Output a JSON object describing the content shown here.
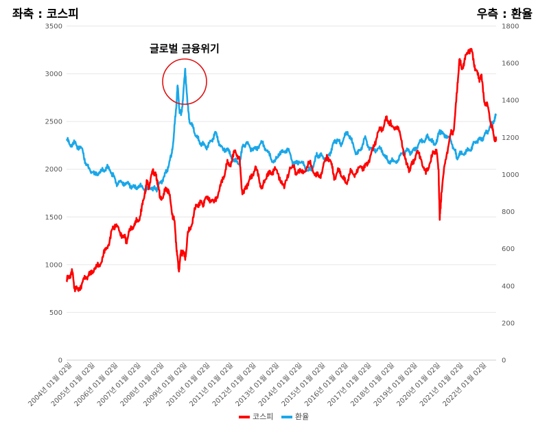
{
  "chart_data": {
    "type": "line",
    "left_axis_title": "좌축 : 코스피",
    "right_axis_title": "우측 : 환율",
    "annotation": "글로벌 금융위기",
    "y_left": {
      "min": 0,
      "max": 3500,
      "ticks": [
        0,
        500,
        1000,
        1500,
        2000,
        2500,
        3000,
        3500
      ]
    },
    "y_right": {
      "min": 0,
      "max": 1800,
      "ticks": [
        0,
        200,
        400,
        600,
        800,
        1000,
        1200,
        1400,
        1600,
        1800
      ]
    },
    "x_range": [
      2004.0,
      2022.65
    ],
    "x_ticks": [
      {
        "value": 2004.0,
        "label": "2004년 01월 02일"
      },
      {
        "value": 2005.0,
        "label": "2005년 01월 02일"
      },
      {
        "value": 2006.0,
        "label": "2006년 01월 02일"
      },
      {
        "value": 2007.0,
        "label": "2007년 01월 02일"
      },
      {
        "value": 2008.0,
        "label": "2008년 01월 02일"
      },
      {
        "value": 2009.0,
        "label": "2009년 01월 02일"
      },
      {
        "value": 2010.0,
        "label": "2010년 01월 02일"
      },
      {
        "value": 2011.0,
        "label": "2011년 01월 02일"
      },
      {
        "value": 2012.0,
        "label": "2012년 01월 02일"
      },
      {
        "value": 2013.0,
        "label": "2013년 01월 02일"
      },
      {
        "value": 2014.0,
        "label": "2014년 01월 02일"
      },
      {
        "value": 2015.0,
        "label": "2015년 01월 02일"
      },
      {
        "value": 2016.0,
        "label": "2016년 01월 02일"
      },
      {
        "value": 2017.0,
        "label": "2017년 01월 02일"
      },
      {
        "value": 2018.0,
        "label": "2018년 01월 02일"
      },
      {
        "value": 2019.0,
        "label": "2019년 01월 02일"
      },
      {
        "value": 2020.0,
        "label": "2020년 01월 02일"
      },
      {
        "value": 2021.0,
        "label": "2021년 01월 02일"
      },
      {
        "value": 2022.0,
        "label": "2022년 01월 02일"
      }
    ],
    "grid": true,
    "legend_position": "bottom",
    "series": [
      {
        "name": "코스피",
        "axis": "left",
        "color": "#ff0000",
        "points": [
          [
            2004.0,
            820
          ],
          [
            2004.1,
            880
          ],
          [
            2004.25,
            920
          ],
          [
            2004.35,
            760
          ],
          [
            2004.5,
            730
          ],
          [
            2004.7,
            820
          ],
          [
            2004.85,
            870
          ],
          [
            2005.0,
            890
          ],
          [
            2005.2,
            960
          ],
          [
            2005.4,
            980
          ],
          [
            2005.6,
            1100
          ],
          [
            2005.8,
            1200
          ],
          [
            2006.0,
            1380
          ],
          [
            2006.1,
            1420
          ],
          [
            2006.3,
            1350
          ],
          [
            2006.5,
            1290
          ],
          [
            2006.6,
            1250
          ],
          [
            2006.75,
            1360
          ],
          [
            2006.95,
            1430
          ],
          [
            2007.1,
            1450
          ],
          [
            2007.25,
            1560
          ],
          [
            2007.4,
            1760
          ],
          [
            2007.5,
            1870
          ],
          [
            2007.6,
            1820
          ],
          [
            2007.75,
            2000
          ],
          [
            2007.85,
            1940
          ],
          [
            2007.95,
            1880
          ],
          [
            2008.05,
            1700
          ],
          [
            2008.2,
            1720
          ],
          [
            2008.35,
            1800
          ],
          [
            2008.45,
            1750
          ],
          [
            2008.6,
            1530
          ],
          [
            2008.7,
            1420
          ],
          [
            2008.8,
            1100
          ],
          [
            2008.87,
            940
          ],
          [
            2008.95,
            1100
          ],
          [
            2009.05,
            1150
          ],
          [
            2009.15,
            1050
          ],
          [
            2009.25,
            1300
          ],
          [
            2009.4,
            1400
          ],
          [
            2009.6,
            1600
          ],
          [
            2009.75,
            1650
          ],
          [
            2009.9,
            1630
          ],
          [
            2010.0,
            1680
          ],
          [
            2010.2,
            1700
          ],
          [
            2010.4,
            1650
          ],
          [
            2010.6,
            1760
          ],
          [
            2010.8,
            1900
          ],
          [
            2010.95,
            2050
          ],
          [
            2011.1,
            2050
          ],
          [
            2011.3,
            2180
          ],
          [
            2011.5,
            2130
          ],
          [
            2011.6,
            1800
          ],
          [
            2011.7,
            1750
          ],
          [
            2011.85,
            1850
          ],
          [
            2012.0,
            1900
          ],
          [
            2012.2,
            2030
          ],
          [
            2012.4,
            1850
          ],
          [
            2012.5,
            1800
          ],
          [
            2012.7,
            1950
          ],
          [
            2012.85,
            1950
          ],
          [
            2013.0,
            2000
          ],
          [
            2013.2,
            1950
          ],
          [
            2013.45,
            1800
          ],
          [
            2013.7,
            2020
          ],
          [
            2013.9,
            2000
          ],
          [
            2014.0,
            1950
          ],
          [
            2014.3,
            1980
          ],
          [
            2014.55,
            2060
          ],
          [
            2014.8,
            1950
          ],
          [
            2014.95,
            1920
          ],
          [
            2015.1,
            1980
          ],
          [
            2015.3,
            2150
          ],
          [
            2015.5,
            2050
          ],
          [
            2015.65,
            1900
          ],
          [
            2015.85,
            2000
          ],
          [
            2016.0,
            1900
          ],
          [
            2016.15,
            1860
          ],
          [
            2016.35,
            1970
          ],
          [
            2016.55,
            1950
          ],
          [
            2016.8,
            2030
          ],
          [
            2016.95,
            2020
          ],
          [
            2017.1,
            2080
          ],
          [
            2017.3,
            2200
          ],
          [
            2017.5,
            2380
          ],
          [
            2017.7,
            2420
          ],
          [
            2017.85,
            2520
          ],
          [
            2018.0,
            2500
          ],
          [
            2018.1,
            2450
          ],
          [
            2018.35,
            2450
          ],
          [
            2018.55,
            2300
          ],
          [
            2018.75,
            2050
          ],
          [
            2018.9,
            2000
          ],
          [
            2019.0,
            2050
          ],
          [
            2019.2,
            2180
          ],
          [
            2019.4,
            2100
          ],
          [
            2019.6,
            1950
          ],
          [
            2019.75,
            2050
          ],
          [
            2019.95,
            2180
          ],
          [
            2020.05,
            2200
          ],
          [
            2020.15,
            2000
          ],
          [
            2020.2,
            1470
          ],
          [
            2020.27,
            1750
          ],
          [
            2020.45,
            2100
          ],
          [
            2020.65,
            2350
          ],
          [
            2020.8,
            2400
          ],
          [
            2020.95,
            2800
          ],
          [
            2021.05,
            3150
          ],
          [
            2021.15,
            3050
          ],
          [
            2021.3,
            3150
          ],
          [
            2021.45,
            3250
          ],
          [
            2021.6,
            3230
          ],
          [
            2021.75,
            3050
          ],
          [
            2021.9,
            2950
          ],
          [
            2022.0,
            2980
          ],
          [
            2022.15,
            2700
          ],
          [
            2022.3,
            2650
          ],
          [
            2022.45,
            2450
          ],
          [
            2022.55,
            2350
          ],
          [
            2022.65,
            2300
          ]
        ]
      },
      {
        "name": "환율",
        "axis": "right",
        "color": "#1aa7e8",
        "points": [
          [
            2004.0,
            1190
          ],
          [
            2004.15,
            1160
          ],
          [
            2004.35,
            1170
          ],
          [
            2004.5,
            1150
          ],
          [
            2004.7,
            1130
          ],
          [
            2004.85,
            1050
          ],
          [
            2005.0,
            1030
          ],
          [
            2005.2,
            1000
          ],
          [
            2005.4,
            1010
          ],
          [
            2005.6,
            1020
          ],
          [
            2005.75,
            1040
          ],
          [
            2005.95,
            1010
          ],
          [
            2006.05,
            990
          ],
          [
            2006.2,
            950
          ],
          [
            2006.4,
            960
          ],
          [
            2006.6,
            950
          ],
          [
            2006.8,
            940
          ],
          [
            2006.95,
            930
          ],
          [
            2007.1,
            935
          ],
          [
            2007.3,
            930
          ],
          [
            2007.5,
            920
          ],
          [
            2007.7,
            930
          ],
          [
            2007.85,
            920
          ],
          [
            2007.95,
            930
          ],
          [
            2008.1,
            960
          ],
          [
            2008.25,
            990
          ],
          [
            2008.4,
            1040
          ],
          [
            2008.55,
            1100
          ],
          [
            2008.65,
            1200
          ],
          [
            2008.75,
            1350
          ],
          [
            2008.82,
            1480
          ],
          [
            2008.9,
            1350
          ],
          [
            2008.97,
            1320
          ],
          [
            2009.05,
            1400
          ],
          [
            2009.15,
            1570
          ],
          [
            2009.25,
            1380
          ],
          [
            2009.35,
            1280
          ],
          [
            2009.5,
            1250
          ],
          [
            2009.65,
            1200
          ],
          [
            2009.8,
            1170
          ],
          [
            2009.95,
            1160
          ],
          [
            2010.1,
            1150
          ],
          [
            2010.3,
            1180
          ],
          [
            2010.45,
            1230
          ],
          [
            2010.6,
            1180
          ],
          [
            2010.8,
            1130
          ],
          [
            2010.95,
            1140
          ],
          [
            2011.1,
            1110
          ],
          [
            2011.3,
            1070
          ],
          [
            2011.5,
            1060
          ],
          [
            2011.65,
            1150
          ],
          [
            2011.8,
            1170
          ],
          [
            2011.95,
            1150
          ],
          [
            2012.1,
            1130
          ],
          [
            2012.3,
            1150
          ],
          [
            2012.5,
            1170
          ],
          [
            2012.7,
            1130
          ],
          [
            2012.9,
            1080
          ],
          [
            2013.05,
            1070
          ],
          [
            2013.2,
            1110
          ],
          [
            2013.4,
            1120
          ],
          [
            2013.6,
            1140
          ],
          [
            2013.8,
            1070
          ],
          [
            2013.95,
            1060
          ],
          [
            2014.1,
            1070
          ],
          [
            2014.3,
            1050
          ],
          [
            2014.5,
            1020
          ],
          [
            2014.65,
            1030
          ],
          [
            2014.85,
            1100
          ],
          [
            2014.95,
            1100
          ],
          [
            2015.1,
            1100
          ],
          [
            2015.3,
            1080
          ],
          [
            2015.45,
            1120
          ],
          [
            2015.6,
            1170
          ],
          [
            2015.75,
            1190
          ],
          [
            2015.9,
            1160
          ],
          [
            2016.05,
            1200
          ],
          [
            2016.2,
            1230
          ],
          [
            2016.4,
            1170
          ],
          [
            2016.6,
            1110
          ],
          [
            2016.75,
            1130
          ],
          [
            2016.95,
            1200
          ],
          [
            2017.1,
            1150
          ],
          [
            2017.3,
            1130
          ],
          [
            2017.5,
            1140
          ],
          [
            2017.7,
            1130
          ],
          [
            2017.85,
            1090
          ],
          [
            2018.0,
            1070
          ],
          [
            2018.2,
            1070
          ],
          [
            2018.4,
            1080
          ],
          [
            2018.6,
            1120
          ],
          [
            2018.8,
            1130
          ],
          [
            2018.95,
            1120
          ],
          [
            2019.1,
            1130
          ],
          [
            2019.3,
            1170
          ],
          [
            2019.5,
            1180
          ],
          [
            2019.65,
            1200
          ],
          [
            2019.8,
            1190
          ],
          [
            2019.95,
            1160
          ],
          [
            2020.1,
            1190
          ],
          [
            2020.2,
            1240
          ],
          [
            2020.3,
            1220
          ],
          [
            2020.5,
            1210
          ],
          [
            2020.7,
            1180
          ],
          [
            2020.85,
            1130
          ],
          [
            2020.95,
            1090
          ],
          [
            2021.1,
            1110
          ],
          [
            2021.3,
            1120
          ],
          [
            2021.5,
            1130
          ],
          [
            2021.65,
            1160
          ],
          [
            2021.8,
            1180
          ],
          [
            2021.95,
            1190
          ],
          [
            2022.1,
            1200
          ],
          [
            2022.25,
            1230
          ],
          [
            2022.4,
            1260
          ],
          [
            2022.55,
            1290
          ],
          [
            2022.65,
            1320
          ]
        ]
      }
    ]
  }
}
